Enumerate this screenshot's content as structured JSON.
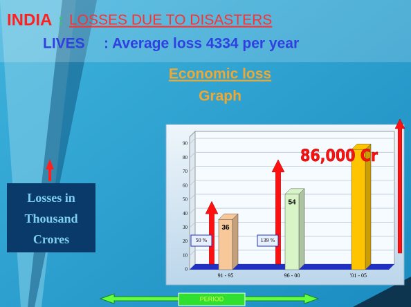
{
  "header": {
    "country": "INDIA",
    "separator": ":",
    "topic": "LOSSES DUE TO DISASTERS",
    "lives_label": "LIVES",
    "lives_text": ": Average loss 4334 per year"
  },
  "chart_data": {
    "type": "bar",
    "title": [
      "Economic loss",
      "Graph"
    ],
    "ylabel": [
      "Losses in",
      "Thousand",
      "Crores"
    ],
    "xlabel": "PERIOD",
    "categories": [
      "91 - 95",
      "96 - 00",
      "'01 - 05"
    ],
    "values": [
      36,
      54,
      86
    ],
    "value_labels": [
      "36",
      "54",
      "86,000 Cr"
    ],
    "colors": [
      "#f7c89a",
      "#d8f5c8",
      "#ffc400"
    ],
    "annotations": [
      "50 %",
      "139 %"
    ],
    "ylim": [
      0,
      95
    ],
    "yticks": [
      0,
      10,
      20,
      30,
      40,
      50,
      60,
      70,
      80,
      90
    ],
    "grid": true
  }
}
